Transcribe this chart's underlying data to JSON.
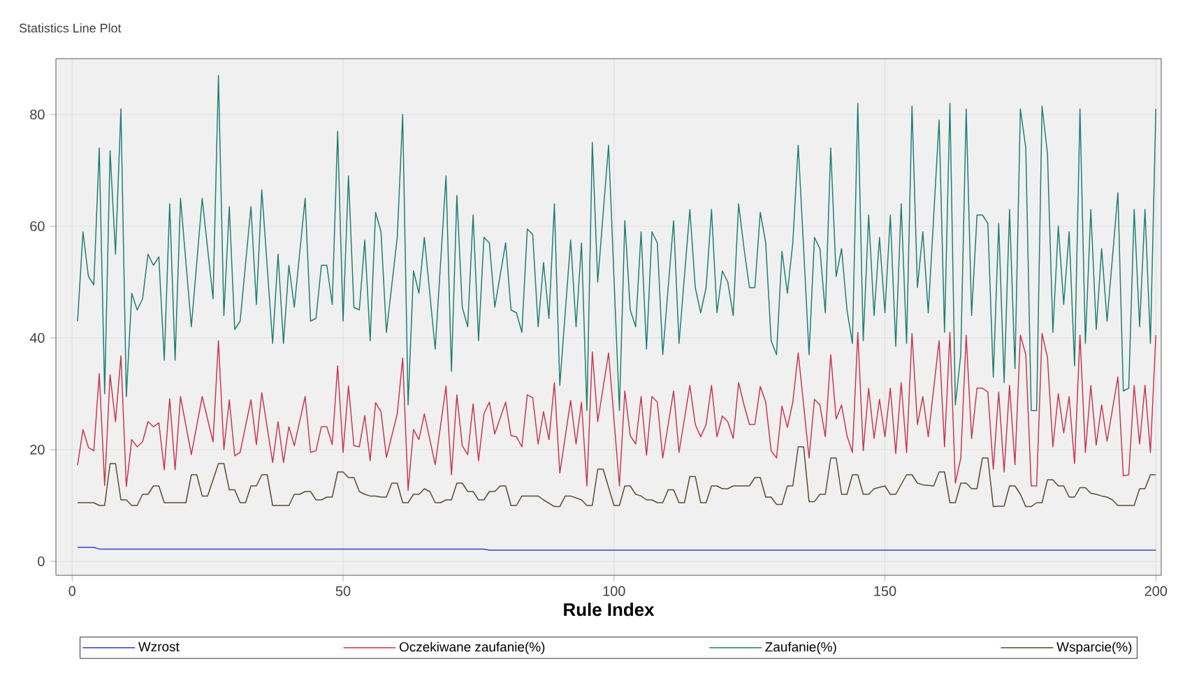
{
  "chart_data": {
    "type": "line",
    "title": "Statistics Line Plot",
    "xlabel": "Rule Index",
    "xlim": [
      -3,
      201
    ],
    "ylim": [
      -2.5,
      90
    ],
    "xticks": [
      0,
      50,
      100,
      150,
      200
    ],
    "yticks": [
      0,
      20,
      40,
      60,
      80
    ],
    "grid": true,
    "legend": "bottom",
    "line_style": "solid",
    "series": [
      {
        "name": "Wzrost",
        "color": "#3c3cc8",
        "x": [
          1,
          4,
          5,
          76,
          77,
          200
        ],
        "values": [
          2.5,
          2.5,
          2.2,
          2.2,
          2.0,
          2.0
        ]
      },
      {
        "name": "Oczekiwane zaufanie(%)",
        "color": "#c8384f",
        "x": [
          1,
          2,
          3,
          4,
          5,
          6,
          7,
          8,
          9,
          10,
          11,
          12,
          13,
          14,
          15,
          16,
          17,
          18,
          19,
          20,
          22,
          24,
          26,
          27,
          28,
          29,
          30,
          31,
          33,
          34,
          35,
          37,
          38,
          39,
          40,
          41,
          43,
          44,
          45,
          46,
          47,
          48,
          49,
          50,
          51,
          52,
          53,
          54,
          55,
          56,
          57,
          58,
          60,
          61,
          62,
          63,
          64,
          65,
          67,
          69,
          70,
          71,
          72,
          73,
          74,
          75,
          76,
          77,
          78,
          80,
          81,
          82,
          83,
          84,
          85,
          86,
          87,
          88,
          89,
          90,
          92,
          93,
          94,
          95,
          96,
          97,
          99,
          101,
          102,
          103,
          104,
          105,
          106,
          107,
          108,
          109,
          111,
          112,
          114,
          115,
          116,
          117,
          118,
          119,
          120,
          121,
          122,
          123,
          124,
          125,
          126,
          127,
          128,
          129,
          130,
          131,
          132,
          133,
          134,
          135,
          136,
          137,
          138,
          139,
          140,
          141,
          142,
          143,
          144,
          145,
          146,
          147,
          148,
          149,
          150,
          151,
          152,
          153,
          154,
          155,
          156,
          157,
          158,
          160,
          161,
          162,
          163,
          164,
          165,
          166,
          167,
          168,
          169,
          170,
          171,
          172,
          173,
          174,
          175,
          176,
          177,
          178,
          179,
          180,
          181,
          182,
          183,
          184,
          185,
          186,
          187,
          188,
          189,
          190,
          191,
          193,
          194,
          195,
          196,
          197,
          198,
          199,
          200
        ],
        "values": [
          17.2,
          23.6,
          20.4,
          19.8,
          33.6,
          13.6,
          33.4,
          25,
          36.8,
          13.4,
          21.8,
          20.5,
          21.4,
          25,
          24.1,
          24.8,
          16.4,
          29.1,
          16.4,
          29.5,
          19.1,
          29.5,
          21.4,
          39.5,
          20,
          28.9,
          18.9,
          19.5,
          28.9,
          20.9,
          30.2,
          17.7,
          25,
          17.7,
          24.1,
          20.7,
          29.5,
          19.5,
          19.8,
          24.1,
          24.1,
          20.9,
          35,
          19.5,
          31.4,
          20.7,
          20.5,
          26.1,
          18,
          28.4,
          26.8,
          18.6,
          26.4,
          36.4,
          12.7,
          23.6,
          21.8,
          26.4,
          17.3,
          31.4,
          15.5,
          29.8,
          20.7,
          19.1,
          28.2,
          18,
          26.4,
          28.5,
          22.8,
          28.5,
          22.5,
          22.3,
          20.5,
          29.8,
          29.3,
          21,
          26.8,
          21.8,
          32,
          15.8,
          28.8,
          21,
          28.5,
          13.5,
          37.5,
          25,
          37.3,
          13.5,
          30.5,
          22.5,
          21,
          29.5,
          19,
          29.5,
          28.5,
          18.5,
          30.5,
          19.5,
          31.5,
          24.5,
          22.3,
          24.5,
          31.5,
          22.3,
          26,
          25,
          22,
          32,
          28,
          24.5,
          24.5,
          31.3,
          28.5,
          19.8,
          18.5,
          27.8,
          24,
          28.5,
          37.3,
          28,
          18.5,
          29,
          28,
          22.3,
          37,
          25.5,
          28,
          22.5,
          19.5,
          41,
          19.8,
          31,
          22,
          29,
          22.3,
          31,
          19.3,
          32,
          19.5,
          40.8,
          24.5,
          29.5,
          22.3,
          39.5,
          20.5,
          41,
          14,
          18.5,
          40.5,
          22,
          31,
          31,
          30.3,
          16.5,
          30.3,
          16,
          31.5,
          17.3,
          40.5,
          37,
          13.5,
          13.5,
          40.8,
          36.5,
          20.5,
          30,
          23,
          29.5,
          17.5,
          40.5,
          19.5,
          31.5,
          20.8,
          28,
          21.5,
          33,
          15.3,
          15.5,
          31.5,
          21,
          31.5,
          19.5,
          40.5
        ]
      },
      {
        "name": "Zaufanie(%)",
        "color": "#1f7f72",
        "x": [
          1,
          2,
          3,
          4,
          5,
          6,
          7,
          8,
          9,
          10,
          11,
          12,
          13,
          14,
          15,
          16,
          17,
          18,
          19,
          20,
          22,
          24,
          26,
          27,
          28,
          29,
          30,
          31,
          33,
          34,
          35,
          37,
          38,
          39,
          40,
          41,
          43,
          44,
          45,
          46,
          47,
          48,
          49,
          50,
          51,
          52,
          53,
          54,
          55,
          56,
          57,
          58,
          60,
          61,
          62,
          63,
          64,
          65,
          67,
          69,
          70,
          71,
          72,
          73,
          74,
          75,
          76,
          77,
          78,
          80,
          81,
          82,
          83,
          84,
          85,
          86,
          87,
          88,
          89,
          90,
          92,
          93,
          94,
          95,
          96,
          97,
          99,
          101,
          102,
          103,
          104,
          105,
          106,
          107,
          108,
          109,
          111,
          112,
          114,
          115,
          116,
          117,
          118,
          119,
          120,
          121,
          122,
          123,
          124,
          125,
          126,
          127,
          128,
          129,
          130,
          131,
          132,
          133,
          134,
          135,
          136,
          137,
          138,
          139,
          140,
          141,
          142,
          143,
          144,
          145,
          146,
          147,
          148,
          149,
          150,
          151,
          152,
          153,
          154,
          155,
          156,
          157,
          158,
          160,
          161,
          162,
          163,
          164,
          165,
          166,
          167,
          168,
          169,
          170,
          171,
          172,
          173,
          174,
          175,
          176,
          177,
          178,
          179,
          180,
          181,
          182,
          183,
          184,
          185,
          186,
          187,
          188,
          189,
          190,
          191,
          193,
          194,
          195,
          196,
          197,
          198,
          199,
          200
        ],
        "values": [
          43,
          59,
          51,
          49.5,
          74,
          30,
          73.5,
          55,
          81,
          29.5,
          48,
          45,
          47,
          55,
          53,
          54.5,
          36,
          64,
          36,
          65,
          42,
          65,
          47,
          87,
          44,
          63.5,
          41.5,
          43,
          63.5,
          46,
          66.5,
          39,
          55,
          39,
          53,
          45.5,
          65,
          43,
          43.5,
          53,
          53,
          46,
          77,
          43,
          69,
          45.5,
          45,
          57.5,
          39.5,
          62.5,
          59,
          41,
          58,
          80,
          28,
          52,
          48,
          58,
          38,
          69,
          34,
          65.5,
          45.5,
          42,
          62,
          39.5,
          58,
          57,
          45.5,
          57,
          45,
          44.5,
          41,
          59.5,
          58.5,
          42,
          53.5,
          43.5,
          64,
          31.5,
          57.5,
          42,
          57,
          27,
          75,
          50,
          74.5,
          27,
          61,
          45,
          42,
          59,
          38,
          59,
          57,
          37,
          61,
          39,
          63,
          49,
          44.5,
          49,
          63,
          44.5,
          52,
          50,
          44,
          64,
          56,
          49,
          49,
          62.5,
          57,
          39.5,
          37,
          55.5,
          48,
          57,
          74.5,
          56,
          37,
          58,
          56,
          44.5,
          74,
          51,
          56,
          45,
          39,
          82,
          39.5,
          62,
          44,
          58,
          44.5,
          62,
          38.5,
          64,
          39,
          81.5,
          49,
          59,
          44.5,
          79,
          41,
          82,
          28,
          37,
          81,
          44,
          62,
          62,
          60.5,
          33,
          60.5,
          32,
          63,
          34.5,
          81,
          74,
          27,
          27,
          81.5,
          73,
          41,
          60,
          46,
          59,
          35,
          81,
          39,
          63,
          41.5,
          56,
          43,
          66,
          30.5,
          31,
          63,
          42,
          63,
          39,
          81
        ]
      },
      {
        "name": "Wsparcie(%)",
        "color": "#5c4a2e",
        "x": [
          1,
          4,
          5,
          6,
          7,
          8,
          9,
          10,
          11,
          12,
          13,
          14,
          15,
          16,
          17,
          21,
          22,
          23,
          24,
          25,
          27,
          28,
          29,
          30,
          31,
          32,
          33,
          34,
          35,
          36,
          37,
          38,
          39,
          40,
          41,
          42,
          43,
          44,
          45,
          46,
          47,
          48,
          49,
          50,
          51,
          52,
          53,
          54,
          55,
          56,
          57,
          58,
          59,
          60,
          61,
          62,
          63,
          64,
          65,
          66,
          67,
          68,
          69,
          70,
          71,
          72,
          73,
          74,
          75,
          76,
          77,
          78,
          79,
          80,
          81,
          82,
          83,
          84,
          86,
          87,
          89,
          90,
          91,
          92,
          94,
          95,
          96,
          97,
          98,
          100,
          101,
          102,
          103,
          104,
          105,
          106,
          107,
          108,
          109,
          110,
          111,
          112,
          113,
          114,
          115,
          116,
          117,
          118,
          119,
          120,
          121,
          122,
          125,
          126,
          127,
          128,
          129,
          130,
          131,
          132,
          133,
          134,
          135,
          136,
          137,
          138,
          139,
          140,
          141,
          142,
          143,
          144,
          145,
          146,
          147,
          148,
          150,
          151,
          152,
          154,
          155,
          156,
          157,
          159,
          160,
          161,
          162,
          163,
          164,
          165,
          166,
          167,
          168,
          169,
          170,
          172,
          173,
          174,
          175,
          176,
          177,
          178,
          179,
          180,
          181,
          182,
          183,
          184,
          185,
          186,
          187,
          188,
          189,
          190,
          191,
          192,
          193,
          196,
          197,
          198,
          199,
          200
        ],
        "values": [
          10.5,
          10.5,
          10,
          10,
          17.5,
          17.5,
          11,
          11,
          10,
          10,
          12,
          12,
          13.5,
          13.5,
          10.5,
          10.5,
          15.5,
          15.5,
          11.7,
          11.7,
          17.5,
          17.5,
          12.8,
          12.8,
          10.5,
          10.5,
          13.5,
          13.5,
          15.5,
          15.5,
          10,
          10,
          10,
          10,
          12,
          12,
          12.5,
          12.5,
          11,
          11,
          11.5,
          11.5,
          16,
          16,
          15,
          15,
          12.5,
          12,
          11.7,
          11.7,
          11.5,
          11.5,
          14,
          14,
          10.5,
          10.5,
          12,
          12,
          13,
          12.5,
          10.5,
          10.5,
          11,
          11,
          14,
          14,
          12.5,
          12.5,
          11,
          11,
          12.5,
          12.5,
          13.5,
          13.5,
          10,
          10,
          11.7,
          11.7,
          11.7,
          11,
          9.8,
          9.8,
          11.7,
          11.7,
          11,
          10,
          10,
          16.5,
          16.5,
          10,
          10,
          13.5,
          13.5,
          12,
          11.7,
          11,
          11,
          10.5,
          10.5,
          12.8,
          12.8,
          10.5,
          10.5,
          15.2,
          15.2,
          10.5,
          10.5,
          13.5,
          13.5,
          13,
          13,
          13.5,
          13.5,
          15,
          15,
          11.5,
          11.5,
          10.2,
          10.2,
          13.5,
          13.5,
          20.5,
          20.5,
          10.7,
          10.7,
          12,
          12,
          18.5,
          18.5,
          12,
          12,
          15.5,
          15.5,
          12,
          12,
          13,
          13.5,
          12,
          12,
          15.5,
          15.5,
          14,
          13.7,
          13.5,
          16,
          16,
          10.5,
          10.5,
          14,
          14,
          13,
          13,
          18.5,
          18.5,
          9.8,
          9.9,
          13.5,
          13.5,
          12,
          9.8,
          9.8,
          10.5,
          10.5,
          14.6,
          14.6,
          13.5,
          13.5,
          11.5,
          11.5,
          13.2,
          13.2,
          12.2,
          12,
          11.7,
          11.5,
          11,
          10,
          10,
          13,
          13,
          15.5,
          15.5
        ]
      }
    ]
  }
}
